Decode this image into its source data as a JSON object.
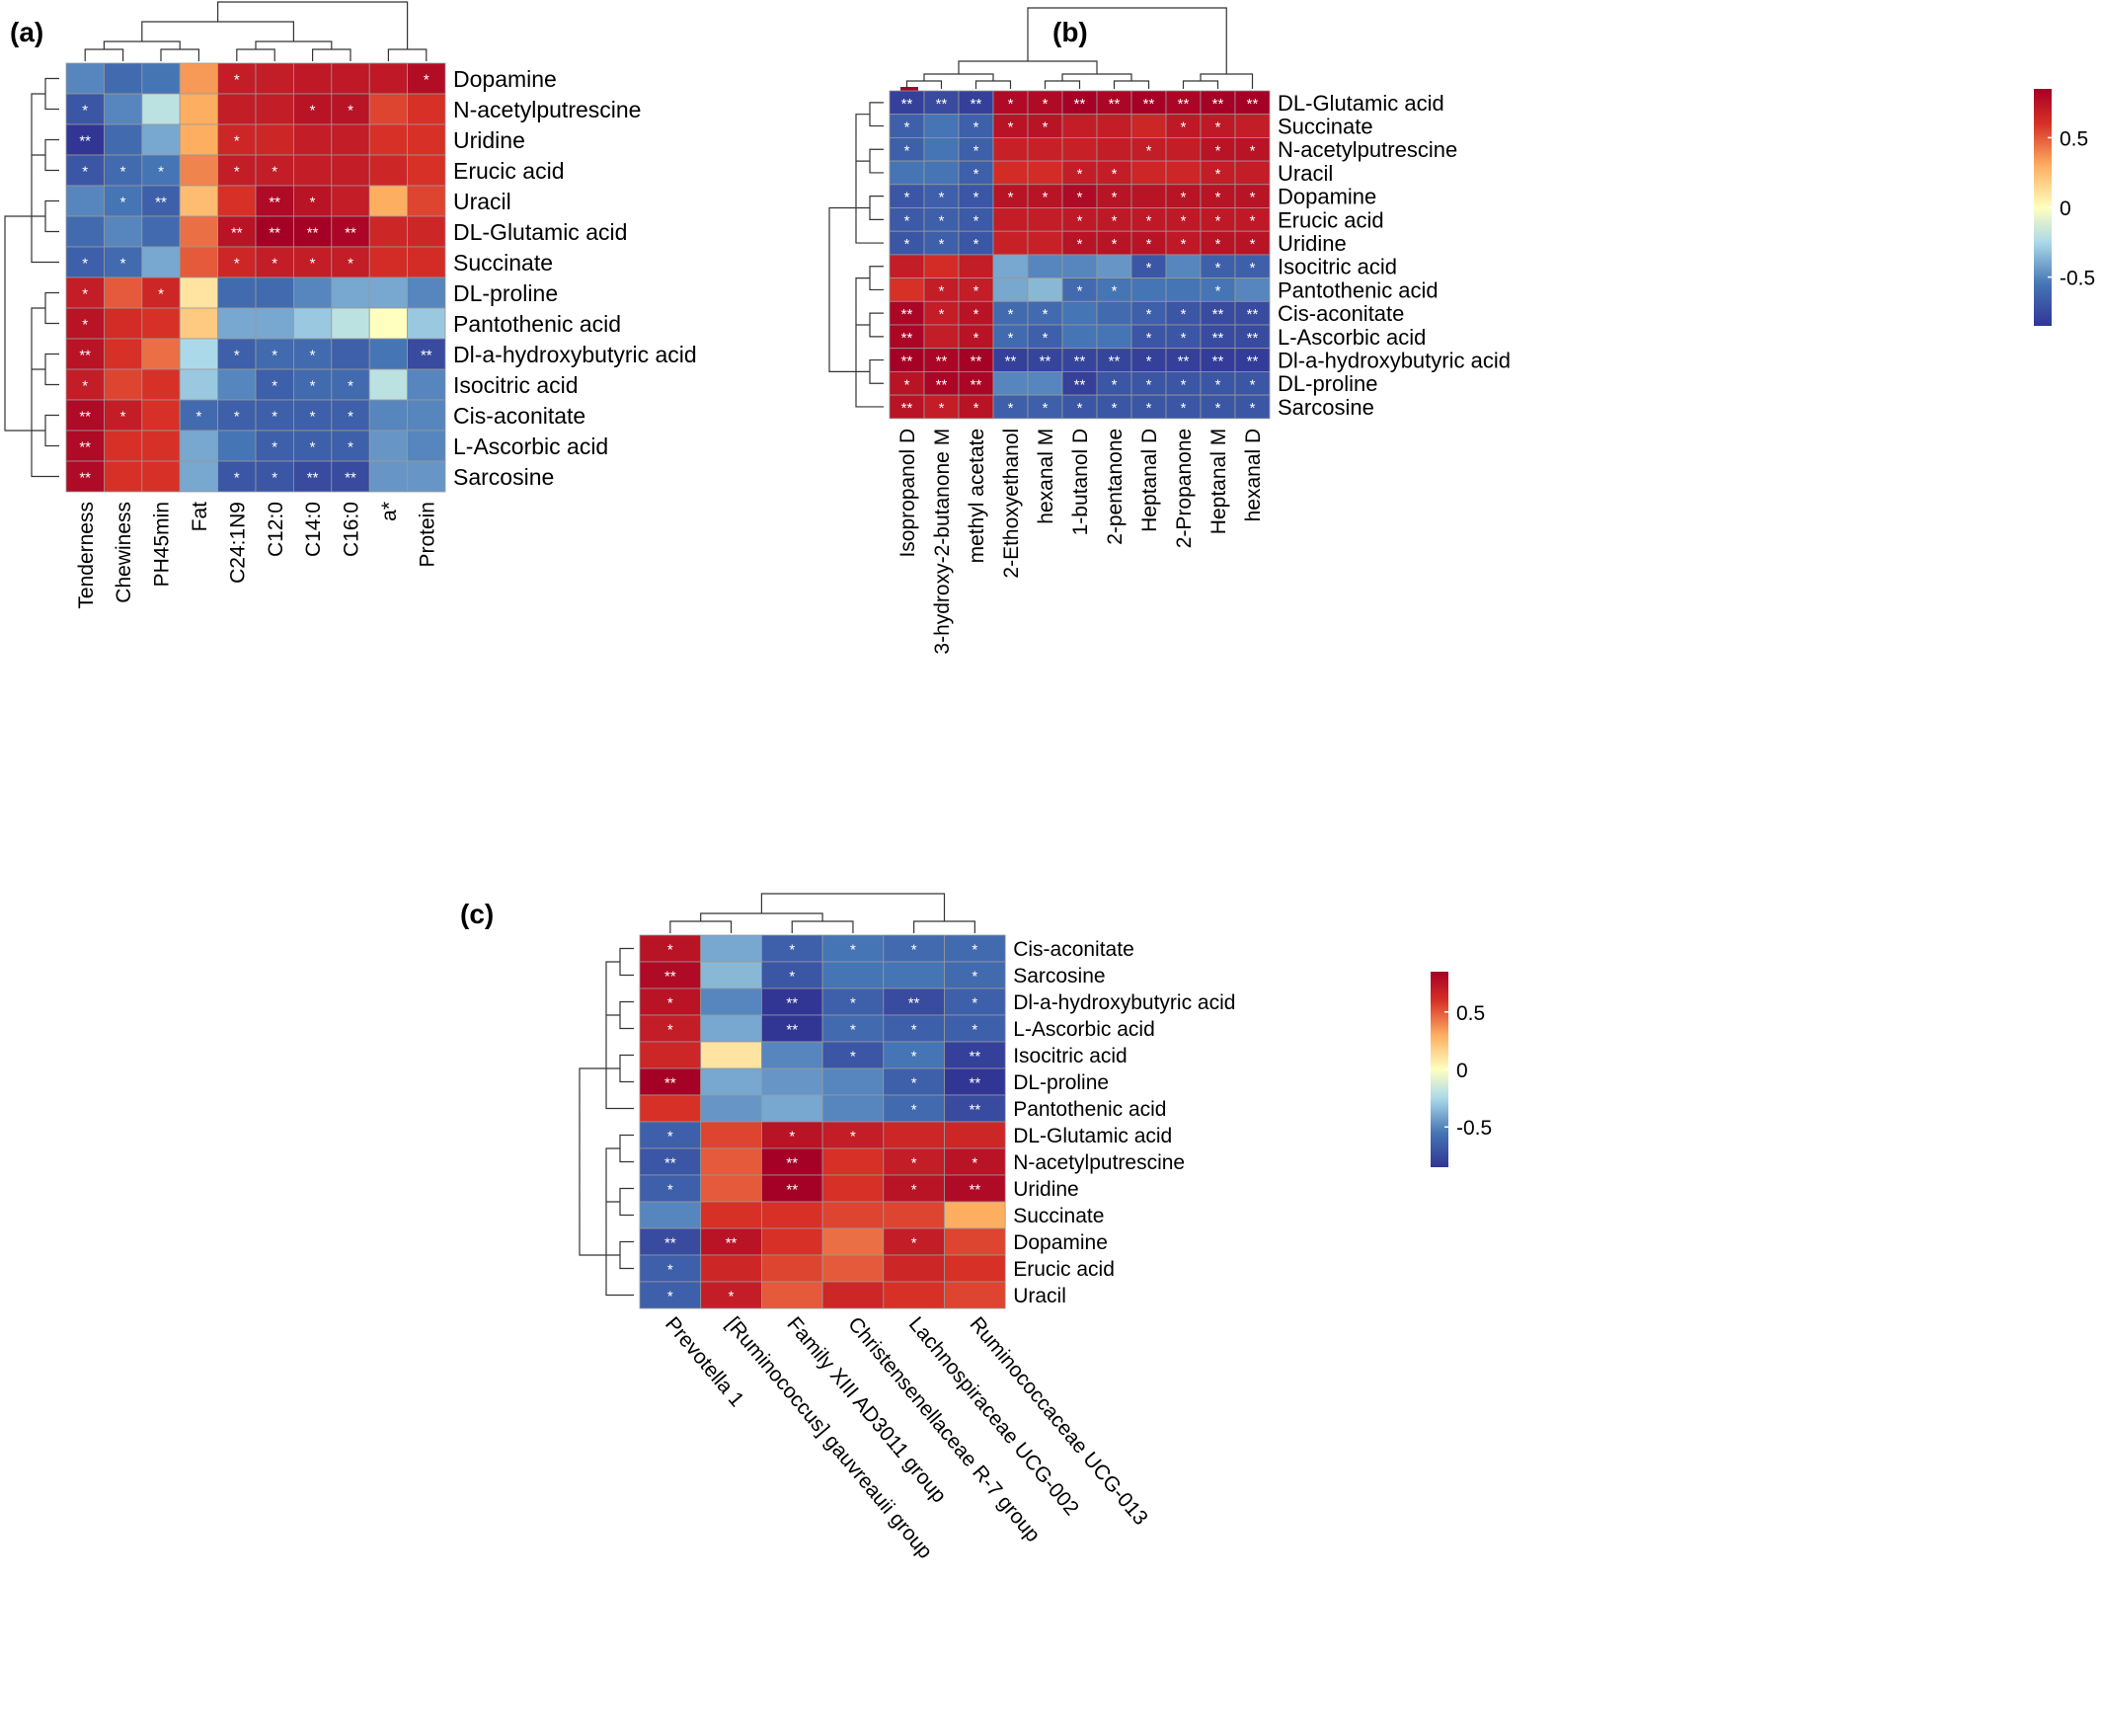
{
  "figure": {
    "panel_labels": [
      "(a)",
      "(b)",
      "(c)"
    ]
  },
  "colors": {
    "low": "#313695",
    "lowmid": "#4575b4",
    "light_blue": "#abd9e9",
    "mid": "#ffffbf",
    "orange": "#fdae61",
    "high": "#d73027",
    "deep_red": "#a50026",
    "cell_border": "#999999",
    "star": "#ffffff",
    "tree": "#333333"
  },
  "chart_data": [
    {
      "panel": "(a)",
      "type": "heatmap",
      "rows": [
        "Dopamine",
        "N-acetylputrescine",
        "Uridine",
        "Erucic acid",
        "Uracil",
        "DL-Glutamic acid",
        "Succinate",
        "DL-proline",
        "Pantothenic acid",
        "Dl-a-hydroxybutyric acid",
        "Isocitric acid",
        "Cis-aconitate",
        "L-Ascorbic acid",
        "Sarcosine"
      ],
      "columns": [
        "Tenderness",
        "Chewiness",
        "PH45min",
        "Fat",
        "C24:1N9",
        "C12:0",
        "C14:0",
        "C16:0",
        "a*",
        "Protein"
      ],
      "values": [
        [
          -0.5,
          -0.6,
          -0.55,
          0.35,
          0.7,
          0.7,
          0.72,
          0.72,
          0.72,
          0.78
        ],
        [
          -0.7,
          -0.5,
          -0.2,
          0.3,
          0.7,
          0.7,
          0.75,
          0.75,
          0.55,
          0.6
        ],
        [
          -0.9,
          -0.6,
          -0.4,
          0.3,
          0.65,
          0.65,
          0.7,
          0.7,
          0.6,
          0.6
        ],
        [
          -0.7,
          -0.6,
          -0.55,
          0.4,
          0.7,
          0.7,
          0.7,
          0.7,
          0.65,
          0.6
        ],
        [
          -0.5,
          -0.55,
          -0.65,
          0.25,
          0.6,
          0.8,
          0.75,
          0.7,
          0.3,
          0.55
        ],
        [
          -0.6,
          -0.5,
          -0.6,
          0.45,
          0.75,
          0.88,
          0.85,
          0.82,
          0.65,
          0.65
        ],
        [
          -0.65,
          -0.6,
          -0.4,
          0.5,
          0.65,
          0.7,
          0.7,
          0.7,
          0.62,
          0.62
        ],
        [
          0.7,
          0.5,
          0.65,
          0.1,
          -0.6,
          -0.6,
          -0.5,
          -0.4,
          -0.4,
          -0.5
        ],
        [
          0.75,
          0.62,
          0.6,
          0.2,
          -0.4,
          -0.4,
          -0.3,
          -0.2,
          0.0,
          -0.3
        ],
        [
          0.75,
          0.6,
          0.45,
          -0.25,
          -0.65,
          -0.6,
          -0.6,
          -0.65,
          -0.55,
          -0.75
        ],
        [
          0.7,
          0.55,
          0.6,
          -0.3,
          -0.5,
          -0.65,
          -0.6,
          -0.6,
          -0.2,
          -0.5
        ],
        [
          0.8,
          0.7,
          0.6,
          -0.6,
          -0.65,
          -0.65,
          -0.65,
          -0.65,
          -0.5,
          -0.5
        ],
        [
          0.8,
          0.6,
          0.6,
          -0.4,
          -0.55,
          -0.65,
          -0.65,
          -0.65,
          -0.45,
          -0.5
        ],
        [
          0.8,
          0.6,
          0.6,
          -0.4,
          -0.7,
          -0.7,
          -0.75,
          -0.75,
          -0.45,
          -0.45
        ]
      ],
      "stars": [
        [
          "",
          "",
          "",
          "",
          "*",
          "",
          "",
          "",
          "",
          "*"
        ],
        [
          "*",
          "",
          "",
          "",
          "",
          "",
          "*",
          "*",
          "",
          ""
        ],
        [
          "**",
          "",
          "",
          "",
          "*",
          "",
          "",
          "",
          "",
          ""
        ],
        [
          "*",
          "*",
          "*",
          "",
          "*",
          "*",
          "",
          "",
          "",
          ""
        ],
        [
          "",
          "*",
          "**",
          "",
          "",
          "**",
          "*",
          "",
          "",
          ""
        ],
        [
          "",
          "",
          "",
          "",
          "**",
          "**",
          "**",
          "**",
          "",
          ""
        ],
        [
          "*",
          "*",
          "",
          "",
          "*",
          "*",
          "*",
          "*",
          "",
          ""
        ],
        [
          "*",
          "",
          "*",
          "",
          "",
          "",
          "",
          "",
          "",
          ""
        ],
        [
          "*",
          "",
          "",
          "",
          "",
          "",
          "",
          "",
          "",
          ""
        ],
        [
          "**",
          "",
          "",
          "",
          "*",
          "*",
          "*",
          "",
          "",
          "**"
        ],
        [
          "*",
          "",
          "",
          "",
          "",
          "*",
          "*",
          "*",
          "",
          ""
        ],
        [
          "**",
          "*",
          "",
          "*",
          "*",
          "*",
          "*",
          "*",
          "",
          ""
        ],
        [
          "**",
          "",
          "",
          "",
          "",
          "*",
          "*",
          "*",
          "",
          ""
        ],
        [
          "**",
          "",
          "",
          "",
          "*",
          "*",
          "**",
          "**",
          "",
          ""
        ]
      ],
      "legend_ticks": [
        "0.5",
        "0",
        "-0.5"
      ],
      "legend_range": [
        -0.85,
        0.85
      ]
    },
    {
      "panel": "(b)",
      "type": "heatmap",
      "rows": [
        "DL-Glutamic acid",
        "Succinate",
        "N-acetylputrescine",
        "Uracil",
        "Dopamine",
        "Erucic acid",
        "Uridine",
        "Isocitric acid",
        "Pantothenic acid",
        "Cis-aconitate",
        "L-Ascorbic acid",
        "Dl-a-hydroxybutyric acid",
        "DL-proline",
        "Sarcosine"
      ],
      "columns": [
        "Isopropanol D",
        "3-hydroxy-2-butanone M",
        "methyl acetate",
        "2-Ethoxyethanol",
        "hexanal M",
        "1-butanol D",
        "2-pentanone",
        "Heptanal D",
        "2-Propanone",
        "Heptanal M",
        "hexanal D"
      ],
      "values": [
        [
          -0.8,
          -0.75,
          -0.8,
          0.8,
          0.8,
          0.85,
          0.82,
          0.85,
          0.82,
          0.85,
          0.88
        ],
        [
          -0.65,
          -0.55,
          -0.65,
          0.75,
          0.75,
          0.7,
          0.7,
          0.65,
          0.72,
          0.72,
          0.7
        ],
        [
          -0.65,
          -0.55,
          -0.65,
          0.68,
          0.68,
          0.68,
          0.7,
          0.7,
          0.7,
          0.75,
          0.75
        ],
        [
          -0.55,
          -0.55,
          -0.65,
          0.62,
          0.62,
          0.7,
          0.7,
          0.65,
          0.65,
          0.7,
          0.7
        ],
        [
          -0.7,
          -0.65,
          -0.7,
          0.75,
          0.75,
          0.8,
          0.75,
          0.75,
          0.75,
          0.75,
          0.75
        ],
        [
          -0.68,
          -0.65,
          -0.68,
          0.7,
          0.7,
          0.72,
          0.72,
          0.72,
          0.72,
          0.72,
          0.72
        ],
        [
          -0.7,
          -0.65,
          -0.7,
          0.68,
          0.68,
          0.75,
          0.75,
          0.75,
          0.72,
          0.75,
          0.75
        ],
        [
          0.7,
          0.62,
          0.7,
          -0.4,
          -0.5,
          -0.5,
          -0.45,
          -0.7,
          -0.5,
          -0.65,
          -0.65
        ],
        [
          0.6,
          0.7,
          0.7,
          -0.4,
          -0.35,
          -0.6,
          -0.55,
          -0.55,
          -0.55,
          -0.55,
          -0.5
        ],
        [
          0.82,
          0.7,
          0.75,
          -0.6,
          -0.6,
          -0.55,
          -0.6,
          -0.65,
          -0.7,
          -0.75,
          -0.75
        ],
        [
          0.82,
          0.7,
          0.75,
          -0.6,
          -0.65,
          -0.55,
          -0.55,
          -0.7,
          -0.7,
          -0.75,
          -0.75
        ],
        [
          0.85,
          0.82,
          0.85,
          -0.8,
          -0.78,
          -0.78,
          -0.78,
          -0.8,
          -0.8,
          -0.82,
          -0.82
        ],
        [
          0.75,
          0.82,
          0.82,
          -0.5,
          -0.5,
          -0.8,
          -0.7,
          -0.7,
          -0.7,
          -0.7,
          -0.7
        ],
        [
          0.75,
          0.7,
          0.75,
          -0.65,
          -0.65,
          -0.7,
          -0.7,
          -0.7,
          -0.7,
          -0.7,
          -0.7
        ]
      ],
      "stars": [
        [
          "**",
          "**",
          "**",
          "*",
          "*",
          "**",
          "**",
          "**",
          "**",
          "**",
          "**"
        ],
        [
          "*",
          "",
          "*",
          "*",
          "*",
          "",
          "",
          "",
          "*",
          "*",
          ""
        ],
        [
          "*",
          "",
          "*",
          "",
          "",
          "",
          "",
          "*",
          "",
          "*",
          "*"
        ],
        [
          "",
          "",
          "*",
          "",
          "",
          "*",
          "*",
          "",
          "",
          "*",
          ""
        ],
        [
          "*",
          "*",
          "*",
          "*",
          "*",
          "*",
          "*",
          "",
          "*",
          "*",
          "*"
        ],
        [
          "*",
          "*",
          "*",
          "",
          "",
          "*",
          "*",
          "*",
          "*",
          "*",
          "*"
        ],
        [
          "*",
          "*",
          "*",
          "",
          "",
          "*",
          "*",
          "*",
          "*",
          "*",
          "*"
        ],
        [
          "",
          "",
          "",
          "",
          "",
          "",
          "",
          "*",
          "",
          "*",
          "*"
        ],
        [
          "",
          "*",
          "*",
          "",
          "",
          "*",
          "*",
          "",
          "",
          "*",
          ""
        ],
        [
          "**",
          "*",
          "*",
          "*",
          "*",
          "",
          "",
          "*",
          "*",
          "**",
          "**"
        ],
        [
          "**",
          "",
          "*",
          "*",
          "*",
          "",
          "",
          "*",
          "*",
          "**",
          "**"
        ],
        [
          "**",
          "**",
          "**",
          "**",
          "**",
          "**",
          "**",
          "*",
          "**",
          "**",
          "**"
        ],
        [
          "*",
          "**",
          "**",
          "",
          "",
          "**",
          "*",
          "*",
          "*",
          "*",
          "*"
        ],
        [
          "**",
          "*",
          "*",
          "*",
          "*",
          "*",
          "*",
          "*",
          "*",
          "*",
          "*"
        ]
      ],
      "legend_ticks": [
        "0.5",
        "0",
        "-0.5"
      ],
      "legend_range": [
        -0.85,
        0.85
      ]
    },
    {
      "panel": "(c)",
      "type": "heatmap",
      "rows": [
        "Cis-aconitate",
        "Sarcosine",
        "Dl-a-hydroxybutyric acid",
        "L-Ascorbic acid",
        "Isocitric acid",
        "DL-proline",
        "Pantothenic acid",
        "DL-Glutamic acid",
        "N-acetylputrescine",
        "Uridine",
        "Succinate",
        "Dopamine",
        "Erucic acid",
        "Uracil"
      ],
      "columns": [
        "Prevotella 1",
        "[Ruminococcus] gauvreauii group",
        "Family XIII AD3011 group",
        "Christensenellaceae R-7 group",
        "Lachnospiraceae UCG-002",
        "Ruminococcaceae UCG-013"
      ],
      "values": [
        [
          0.75,
          -0.4,
          -0.65,
          -0.55,
          -0.6,
          -0.6
        ],
        [
          0.8,
          -0.35,
          -0.7,
          -0.55,
          -0.55,
          -0.6
        ],
        [
          0.75,
          -0.5,
          -0.9,
          -0.65,
          -0.75,
          -0.65
        ],
        [
          0.7,
          -0.4,
          -0.85,
          -0.6,
          -0.65,
          -0.65
        ],
        [
          0.65,
          0.1,
          -0.5,
          -0.7,
          -0.55,
          -0.8
        ],
        [
          0.85,
          -0.4,
          -0.45,
          -0.5,
          -0.65,
          -0.9
        ],
        [
          0.6,
          -0.45,
          -0.4,
          -0.5,
          -0.6,
          -0.75
        ],
        [
          -0.65,
          0.55,
          0.75,
          0.7,
          0.65,
          0.65
        ],
        [
          -0.7,
          0.5,
          0.9,
          0.6,
          0.7,
          0.75
        ],
        [
          -0.65,
          0.5,
          0.85,
          0.6,
          0.75,
          0.8
        ],
        [
          -0.5,
          0.6,
          0.6,
          0.55,
          0.55,
          0.3
        ],
        [
          -0.75,
          0.75,
          0.6,
          0.45,
          0.7,
          0.55
        ],
        [
          -0.65,
          0.65,
          0.55,
          0.5,
          0.65,
          0.6
        ],
        [
          -0.65,
          0.7,
          0.5,
          0.65,
          0.6,
          0.55
        ]
      ],
      "stars": [
        [
          "*",
          "",
          "*",
          "*",
          "*",
          "*"
        ],
        [
          "**",
          "",
          "*",
          "",
          "",
          "*"
        ],
        [
          "*",
          "",
          "**",
          "*",
          "**",
          "*"
        ],
        [
          "*",
          "",
          "**",
          "*",
          "*",
          "*"
        ],
        [
          "",
          "",
          "",
          "*",
          "*",
          "**"
        ],
        [
          "**",
          "",
          "",
          "",
          "*",
          "**"
        ],
        [
          "",
          "",
          "",
          "",
          "*",
          "**"
        ],
        [
          "*",
          "",
          "*",
          "*",
          "",
          ""
        ],
        [
          "**",
          "",
          "**",
          "",
          "*",
          "*"
        ],
        [
          "*",
          "",
          "**",
          "",
          "*",
          "**"
        ],
        [
          "",
          "",
          "",
          "",
          "",
          ""
        ],
        [
          "**",
          "**",
          "",
          "",
          "*",
          ""
        ],
        [
          "*",
          "",
          "",
          "",
          "",
          ""
        ],
        [
          "*",
          "*",
          "",
          "",
          "",
          ""
        ]
      ],
      "legend_ticks": [
        "0.5",
        "0",
        "-0.5"
      ],
      "legend_range": [
        -0.85,
        0.85
      ]
    }
  ]
}
